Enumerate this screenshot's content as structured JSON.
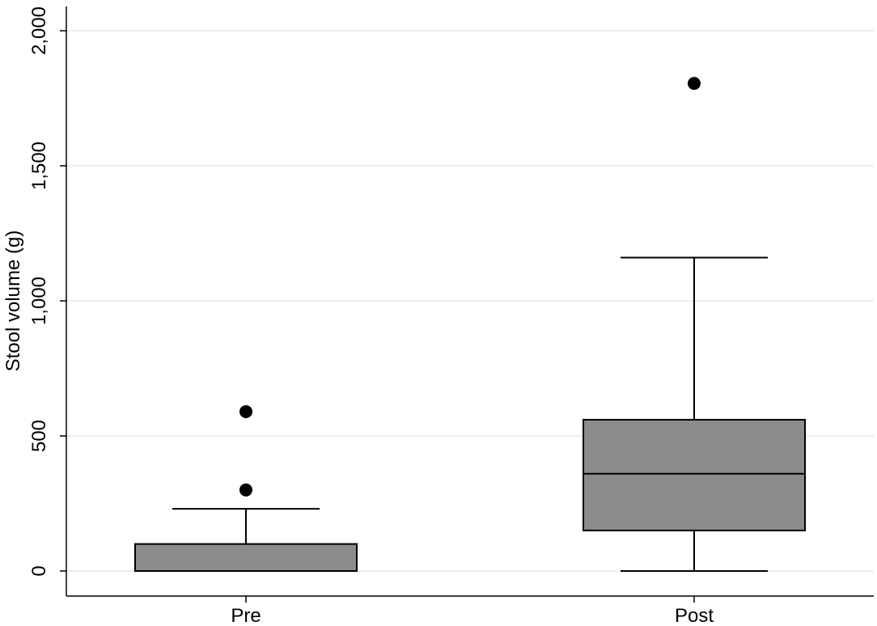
{
  "chart_data": {
    "type": "box",
    "title": "",
    "xlabel": "",
    "ylabel": "Stool volume (g)",
    "ylim": [
      0,
      2000
    ],
    "yticks": [
      0,
      500,
      1000,
      1500,
      2000
    ],
    "ytick_labels": [
      "0",
      "500",
      "1,000",
      "1,500",
      "2,000"
    ],
    "grid": true,
    "box_color": "#8c8c8c",
    "categories": [
      "Pre",
      "Post"
    ],
    "boxes": [
      {
        "category": "Pre",
        "whisker_low": 0,
        "q1": 0,
        "median": 0,
        "q3": 100,
        "whisker_high": 230,
        "outliers": [
          300,
          590
        ]
      },
      {
        "category": "Post",
        "whisker_low": 0,
        "q1": 150,
        "median": 360,
        "q3": 560,
        "whisker_high": 1160,
        "outliers": [
          1805
        ]
      }
    ]
  }
}
